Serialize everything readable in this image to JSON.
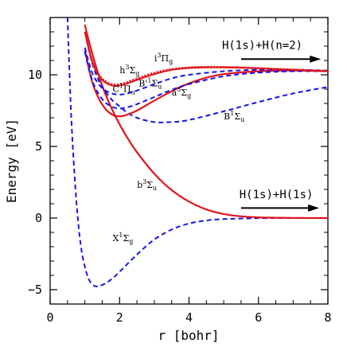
{
  "chart_data": {
    "type": "line",
    "xlabel": "r [bohr]",
    "ylabel": "Energy [eV]",
    "xlim": [
      0,
      8
    ],
    "ylim": [
      -6,
      14
    ],
    "x_ticks": [
      0,
      2,
      4,
      6,
      8
    ],
    "y_ticks": [
      -5,
      0,
      5,
      10
    ],
    "grid": false,
    "colors": {
      "red": "#e0151b",
      "blue": "#1515e8"
    },
    "series": [
      {
        "label": "X¹Σg",
        "color": "#1515e8",
        "dash": true,
        "x": [
          0.5,
          0.6,
          0.7,
          0.8,
          0.9,
          1.0,
          1.1,
          1.2,
          1.3,
          1.4,
          1.6,
          1.8,
          2.0,
          2.5,
          3.0,
          3.5,
          4.0,
          4.5,
          5.0,
          6.0,
          7.0,
          8.0
        ],
        "y": [
          14.0,
          7.5,
          3.1,
          -0.1,
          -2.2,
          -3.4,
          -4.2,
          -4.6,
          -4.75,
          -4.75,
          -4.55,
          -4.2,
          -3.75,
          -2.55,
          -1.5,
          -0.8,
          -0.38,
          -0.17,
          -0.07,
          -0.01,
          0.0,
          0.0
        ]
      },
      {
        "label": "b³Σu",
        "color": "#e0151b",
        "dash": false,
        "x": [
          1.0,
          1.1,
          1.2,
          1.3,
          1.4,
          1.5,
          1.6,
          1.8,
          2.0,
          2.2,
          2.5,
          3.0,
          3.5,
          4.0,
          4.5,
          5.0,
          5.5,
          6.0,
          7.0,
          8.0
        ],
        "y": [
          13.5,
          12.5,
          11.6,
          10.75,
          9.95,
          9.25,
          8.6,
          7.5,
          6.55,
          5.7,
          4.6,
          3.1,
          1.95,
          1.15,
          0.6,
          0.28,
          0.12,
          0.05,
          0.01,
          0.0
        ]
      },
      {
        "label": "B¹Σu",
        "color": "#1515e8",
        "dash": true,
        "x": [
          1.0,
          1.2,
          1.4,
          1.6,
          1.8,
          2.0,
          2.2,
          2.5,
          3.0,
          3.5,
          4.0,
          5.0,
          6.0,
          7.0,
          8.0
        ],
        "y": [
          13.0,
          10.9,
          9.6,
          8.8,
          8.2,
          7.8,
          7.4,
          7.0,
          6.7,
          6.7,
          6.85,
          7.45,
          8.1,
          8.7,
          9.15
        ]
      },
      {
        "label": "a³Σg",
        "color": "#e0151b",
        "dash": false,
        "x": [
          1.0,
          1.2,
          1.4,
          1.6,
          1.8,
          2.0,
          2.2,
          2.5,
          3.0,
          3.5,
          4.0,
          4.5,
          5.0,
          6.0,
          7.0,
          8.0
        ],
        "y": [
          11.7,
          9.6,
          8.35,
          7.6,
          7.2,
          7.1,
          7.2,
          7.5,
          8.2,
          8.85,
          9.4,
          9.8,
          10.05,
          10.25,
          10.3,
          10.25
        ]
      },
      {
        "label": "C¹Πu",
        "color": "#1515e8",
        "dash": true,
        "x": [
          1.0,
          1.2,
          1.4,
          1.6,
          1.8,
          2.0,
          2.2,
          2.5,
          3.0,
          3.5,
          4.0,
          5.0,
          6.0,
          7.0,
          8.0
        ],
        "y": [
          11.6,
          9.7,
          8.65,
          8.05,
          7.75,
          7.65,
          7.72,
          7.95,
          8.45,
          8.95,
          9.35,
          9.9,
          10.15,
          10.25,
          10.25
        ]
      },
      {
        "label": "B'¹Σu",
        "color": "#1515e8",
        "dash": true,
        "x": [
          1.0,
          1.2,
          1.4,
          1.6,
          1.8,
          2.0,
          2.2,
          2.5,
          3.0,
          3.5,
          4.0,
          5.0,
          6.0,
          7.0,
          8.0
        ],
        "y": [
          11.9,
          10.2,
          9.35,
          8.9,
          8.68,
          8.62,
          8.68,
          8.9,
          9.35,
          9.75,
          10.0,
          10.25,
          10.35,
          10.35,
          10.3
        ]
      },
      {
        "label": "h³Σg",
        "color": "#e0151b",
        "dash": false,
        "x": [
          1.0,
          1.2,
          1.4,
          1.6,
          1.8,
          2.0,
          2.2,
          2.5,
          3.0,
          3.5,
          4.0,
          4.5,
          5.0,
          5.5,
          6.0,
          7.0,
          8.0
        ],
        "y": [
          13.0,
          11.0,
          9.95,
          9.45,
          9.25,
          9.25,
          9.38,
          9.65,
          10.05,
          10.35,
          10.48,
          10.52,
          10.52,
          10.5,
          10.45,
          10.35,
          10.25
        ]
      },
      {
        "label": "i³Πg",
        "color": "#e0151b",
        "dash": false,
        "dotted": true,
        "x": [
          1.0,
          1.2,
          1.4,
          1.6,
          1.8,
          2.0,
          2.2,
          2.5,
          3.0,
          3.5,
          4.0,
          4.5,
          5.0,
          5.5,
          6.0,
          7.0,
          8.0
        ],
        "y": [
          13.0,
          11.1,
          10.05,
          9.55,
          9.35,
          9.35,
          9.48,
          9.75,
          10.15,
          10.4,
          10.52,
          10.56,
          10.55,
          10.52,
          10.47,
          10.37,
          10.27
        ]
      }
    ],
    "annotations": [
      {
        "text": "H(1s)+H(n=2)",
        "x": 4.95,
        "y": 11.8,
        "arrow": [
          5.5,
          7.8,
          11.1
        ]
      },
      {
        "text": "H(1s)+H(1s)",
        "x": 5.45,
        "y": 1.4,
        "arrow": [
          5.5,
          7.75,
          0.7
        ]
      }
    ],
    "state_labels": [
      {
        "text": "X¹Σg",
        "x": 1.8,
        "y": -1.6
      },
      {
        "text": "b³Σu",
        "x": 2.5,
        "y": 2.1
      },
      {
        "text": "B¹Σu",
        "x": 5.0,
        "y": 6.9
      },
      {
        "text": "a³Σg",
        "x": 3.5,
        "y": 8.55
      },
      {
        "text": "C¹Πu",
        "x": 1.8,
        "y": 8.8
      },
      {
        "text": "B'¹Σu",
        "x": 2.55,
        "y": 9.2
      },
      {
        "text": "h³Σg",
        "x": 2.0,
        "y": 10.1
      },
      {
        "text": "i³Πg",
        "x": 3.0,
        "y": 10.95
      }
    ]
  }
}
